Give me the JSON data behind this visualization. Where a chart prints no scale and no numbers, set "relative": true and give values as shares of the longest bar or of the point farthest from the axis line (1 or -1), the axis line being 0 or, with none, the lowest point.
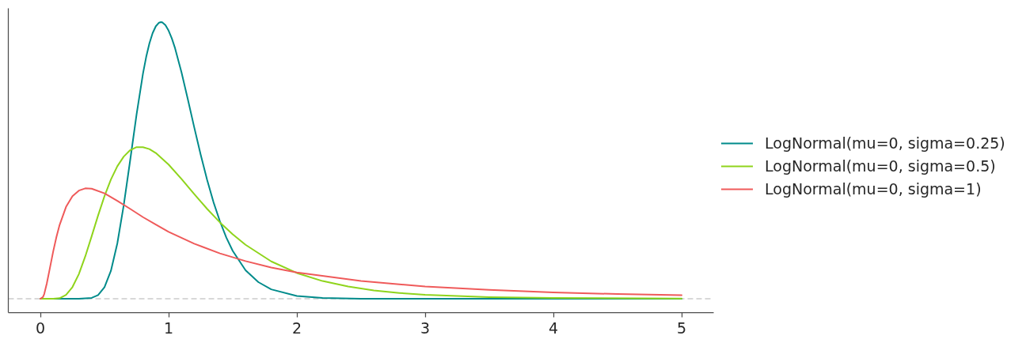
{
  "chart_data": {
    "type": "line",
    "relative": true,
    "series": [
      {
        "name": "LogNormal(mu=0, sigma=0.25)",
        "color": "#008b8b",
        "x": [
          0,
          0.3,
          0.4,
          0.45,
          0.5,
          0.55,
          0.6,
          0.65,
          0.7,
          0.75,
          0.8,
          0.825,
          0.85,
          0.875,
          0.9,
          0.925,
          0.94,
          0.95,
          0.975,
          1,
          1.025,
          1.05,
          1.1,
          1.15,
          1.2,
          1.25,
          1.3,
          1.35,
          1.4,
          1.45,
          1.5,
          1.6,
          1.7,
          1.8,
          2,
          2.2,
          2.5,
          3,
          4,
          5
        ],
        "values": [
          0,
          0,
          0.003,
          0.013,
          0.042,
          0.101,
          0.2,
          0.338,
          0.5,
          0.666,
          0.814,
          0.874,
          0.923,
          0.96,
          0.985,
          0.998,
          1,
          0.999,
          0.989,
          0.969,
          0.941,
          0.906,
          0.819,
          0.721,
          0.619,
          0.521,
          0.43,
          0.349,
          0.28,
          0.221,
          0.173,
          0.103,
          0.06,
          0.034,
          0.01,
          0.003,
          0,
          0,
          0,
          0
        ]
      },
      {
        "name": "LogNormal(mu=0, sigma=0.5)",
        "color": "#8fd41c",
        "x": [
          0,
          0.1,
          0.15,
          0.2,
          0.25,
          0.3,
          0.35,
          0.4,
          0.45,
          0.5,
          0.55,
          0.6,
          0.65,
          0.7,
          0.75,
          0.8,
          0.85,
          0.9,
          1,
          1.1,
          1.2,
          1.3,
          1.4,
          1.5,
          1.6,
          1.8,
          2,
          2.2,
          2.4,
          2.6,
          2.8,
          3,
          3.5,
          4,
          5
        ],
        "values": [
          0,
          0,
          0.002,
          0.014,
          0.042,
          0.089,
          0.153,
          0.226,
          0.301,
          0.371,
          0.431,
          0.479,
          0.514,
          0.537,
          0.548,
          0.548,
          0.541,
          0.527,
          0.485,
          0.433,
          0.378,
          0.325,
          0.276,
          0.233,
          0.195,
          0.135,
          0.093,
          0.064,
          0.044,
          0.03,
          0.021,
          0.014,
          0.006,
          0.003,
          0.001
        ]
      },
      {
        "name": "LogNormal(mu=0, sigma=1)",
        "color": "#ef5a5a",
        "x": [
          0,
          0.02,
          0.03,
          0.05,
          0.07,
          0.1,
          0.125,
          0.15,
          0.2,
          0.25,
          0.3,
          0.35,
          0.4,
          0.5,
          0.6,
          0.7,
          0.8,
          0.9,
          1,
          1.2,
          1.4,
          1.6,
          1.8,
          2,
          2.5,
          3,
          3.5,
          4,
          4.5,
          5
        ],
        "values": [
          0,
          0.006,
          0.017,
          0.055,
          0.101,
          0.171,
          0.223,
          0.267,
          0.332,
          0.371,
          0.391,
          0.399,
          0.398,
          0.381,
          0.354,
          0.325,
          0.295,
          0.268,
          0.242,
          0.199,
          0.164,
          0.136,
          0.113,
          0.095,
          0.064,
          0.044,
          0.032,
          0.023,
          0.017,
          0.013
        ]
      }
    ],
    "xlim": [
      -0.25,
      5.25
    ],
    "xticks": [
      0,
      1,
      2,
      3,
      4,
      5
    ],
    "ref_lines": [
      {
        "axis": "y",
        "value": 0,
        "color": "#cccccc",
        "line_style": "dashed"
      }
    ],
    "grid": false,
    "legend": "right",
    "line_style": "solid",
    "tick_labels": "x"
  }
}
